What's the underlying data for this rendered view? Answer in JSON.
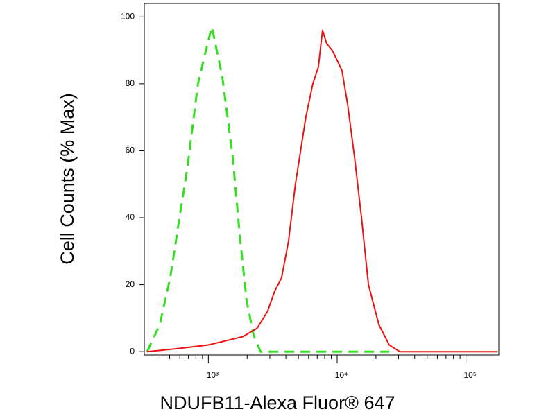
{
  "chart_data": {
    "type": "line",
    "xlabel": "NDUFB11-Alexa Fluor® 647",
    "ylabel": "Cell Counts (% Max)",
    "xscale": "log",
    "xlim": [
      318,
      180000
    ],
    "ylim": [
      -1,
      104
    ],
    "xticks": [
      {
        "value": 1000,
        "label": "10³"
      },
      {
        "value": 10000,
        "label": "10⁴"
      },
      {
        "value": 100000,
        "label": "10⁵"
      }
    ],
    "xminorticks": [
      400,
      500,
      600,
      700,
      800,
      900,
      2000,
      3000,
      4000,
      5000,
      6000,
      7000,
      8000,
      9000,
      20000,
      30000,
      40000,
      50000,
      60000,
      70000,
      80000,
      90000
    ],
    "yticks": [
      0,
      20,
      40,
      60,
      80,
      100
    ],
    "series": [
      {
        "color": "#33dd22",
        "dash": true,
        "x": [
          334,
          419,
          505,
          608,
          688,
          830,
          1000,
          1064,
          1283,
          1546,
          1750,
          1983,
          2244,
          2541,
          25400
        ],
        "values": [
          0,
          8,
          22,
          42,
          55,
          80,
          93,
          97,
          82,
          58,
          35,
          15,
          5,
          0,
          0
        ]
      },
      {
        "color": "#ee1111",
        "dash": false,
        "x": [
          334,
          608,
          1000,
          1283,
          1862,
          2390,
          2877,
          3265,
          3700,
          4190,
          4740,
          5710,
          6470,
          7150,
          7700,
          8290,
          9160,
          10000,
          10900,
          12050,
          13650,
          15450,
          17500,
          21100,
          25400,
          30600,
          177000
        ],
        "values": [
          0,
          1,
          2,
          3,
          4.5,
          7,
          12,
          18,
          22,
          33,
          50,
          70,
          80,
          85,
          96,
          92,
          90,
          87,
          84,
          74,
          58,
          40,
          20,
          8,
          2,
          0,
          0
        ]
      }
    ]
  }
}
